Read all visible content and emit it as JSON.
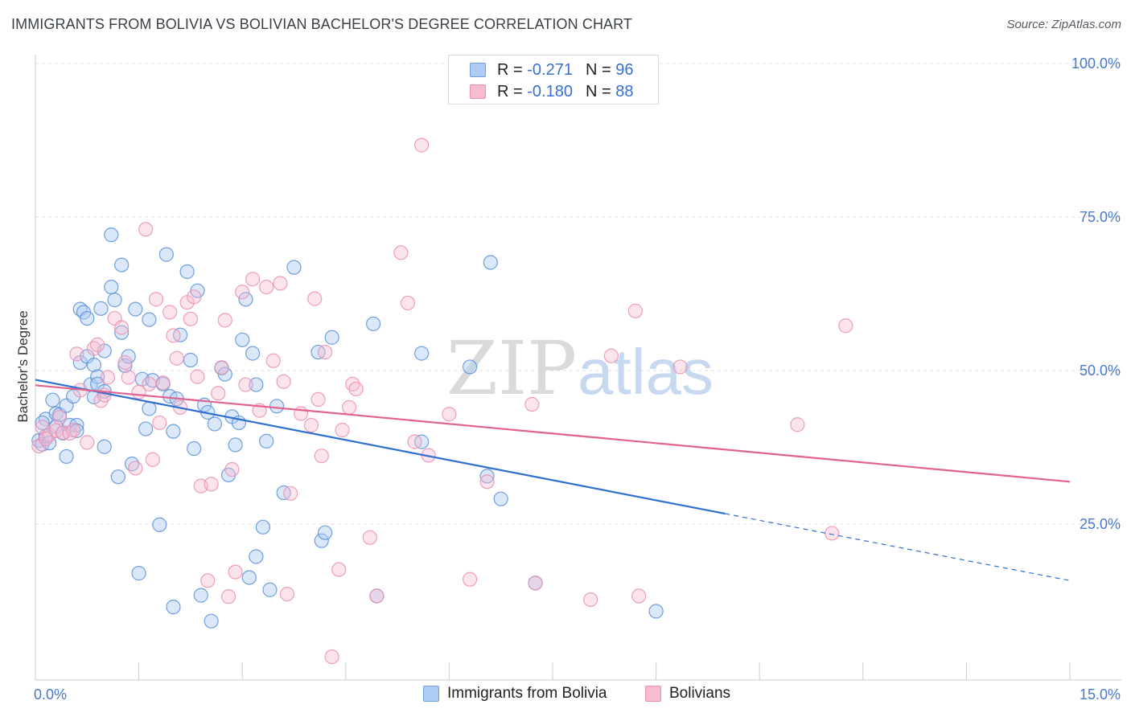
{
  "title": "IMMIGRANTS FROM BOLIVIA VS BOLIVIAN BACHELOR'S DEGREE CORRELATION CHART",
  "source": "Source: ZipAtlas.com",
  "watermark": "ZIPatlas",
  "legend": {
    "r_label": "R =",
    "n_label": "N =",
    "series": [
      {
        "name": "Immigrants from Bolivia",
        "r": "-0.271",
        "n": "96",
        "fill": "#aecbf3",
        "stroke": "#6f9fe0"
      },
      {
        "name": "Bolivians",
        "r": "-0.180",
        "n": "88",
        "fill": "#f7bcd0",
        "stroke": "#ea8fb0"
      }
    ]
  },
  "chart_data": {
    "type": "scatter",
    "xlabel": "",
    "ylabel": "Bachelor's Degree",
    "xlim": [
      0,
      15
    ],
    "ylim": [
      0,
      105
    ],
    "x_tick_labels": [
      "0.0%",
      "15.0%"
    ],
    "y_ticks": [
      25,
      50,
      75,
      100
    ],
    "y_tick_labels": [
      "25.0%",
      "50.0%",
      "75.0%",
      "100.0%"
    ],
    "series": [
      {
        "name": "Immigrants from Bolivia",
        "color": "#5b8fd8",
        "trend": {
          "x0": 0,
          "y0": 48.5,
          "x1": 10.0,
          "y1": 26.7,
          "dash_to_x": 15,
          "dash_to_y": 15.8,
          "color": "#2f6fd0"
        },
        "points": [
          [
            0.05,
            38.6
          ],
          [
            0.1,
            38.0
          ],
          [
            0.15,
            39.3
          ],
          [
            0.15,
            42.1
          ],
          [
            0.2,
            38.2
          ],
          [
            0.25,
            45.2
          ],
          [
            0.3,
            40.9
          ],
          [
            0.3,
            43.0
          ],
          [
            0.35,
            42.8
          ],
          [
            0.45,
            36.0
          ],
          [
            0.45,
            44.3
          ],
          [
            0.5,
            41.1
          ],
          [
            0.55,
            45.8
          ],
          [
            0.6,
            41.1
          ],
          [
            0.65,
            51.3
          ],
          [
            0.65,
            60.0
          ],
          [
            0.7,
            59.5
          ],
          [
            0.75,
            58.5
          ],
          [
            0.75,
            52.3
          ],
          [
            0.8,
            47.7
          ],
          [
            0.85,
            45.7
          ],
          [
            0.85,
            50.9
          ],
          [
            0.9,
            49.0
          ],
          [
            0.9,
            47.8
          ],
          [
            0.95,
            60.1
          ],
          [
            1.0,
            46.6
          ],
          [
            1.0,
            53.2
          ],
          [
            1.1,
            72.1
          ],
          [
            1.1,
            63.6
          ],
          [
            1.15,
            61.5
          ],
          [
            1.2,
            32.7
          ],
          [
            1.25,
            67.2
          ],
          [
            1.25,
            56.2
          ],
          [
            1.3,
            50.8
          ],
          [
            1.35,
            52.3
          ],
          [
            1.4,
            34.8
          ],
          [
            1.45,
            60.0
          ],
          [
            1.5,
            17.0
          ],
          [
            1.55,
            48.6
          ],
          [
            1.6,
            40.5
          ],
          [
            1.65,
            58.3
          ],
          [
            1.65,
            43.8
          ],
          [
            1.7,
            48.4
          ],
          [
            1.8,
            24.9
          ],
          [
            1.85,
            47.8
          ],
          [
            1.9,
            68.9
          ],
          [
            1.95,
            45.8
          ],
          [
            2.0,
            11.5
          ],
          [
            2.05,
            45.4
          ],
          [
            2.1,
            55.8
          ],
          [
            2.2,
            66.1
          ],
          [
            2.25,
            51.7
          ],
          [
            2.3,
            37.3
          ],
          [
            2.35,
            63.0
          ],
          [
            2.4,
            13.4
          ],
          [
            2.45,
            44.4
          ],
          [
            2.5,
            43.2
          ],
          [
            2.55,
            9.2
          ],
          [
            2.6,
            41.3
          ],
          [
            2.7,
            50.4
          ],
          [
            2.75,
            49.4
          ],
          [
            2.8,
            33.0
          ],
          [
            2.85,
            42.5
          ],
          [
            2.9,
            37.9
          ],
          [
            2.95,
            41.5
          ],
          [
            3.05,
            61.6
          ],
          [
            3.1,
            16.3
          ],
          [
            3.15,
            52.8
          ],
          [
            3.2,
            47.7
          ],
          [
            3.2,
            19.7
          ],
          [
            3.3,
            24.5
          ],
          [
            3.35,
            38.5
          ],
          [
            3.4,
            14.3
          ],
          [
            3.5,
            44.2
          ],
          [
            3.6,
            30.1
          ],
          [
            3.75,
            66.8
          ],
          [
            4.1,
            53.0
          ],
          [
            4.15,
            22.3
          ],
          [
            4.2,
            23.6
          ],
          [
            4.3,
            55.4
          ],
          [
            4.9,
            57.6
          ],
          [
            4.95,
            13.3
          ],
          [
            5.6,
            38.4
          ],
          [
            5.6,
            52.8
          ],
          [
            6.3,
            50.6
          ],
          [
            6.55,
            32.8
          ],
          [
            6.6,
            67.6
          ],
          [
            6.75,
            29.1
          ],
          [
            7.25,
            15.4
          ],
          [
            9.0,
            10.8
          ],
          [
            0.1,
            41.5
          ],
          [
            0.4,
            39.8
          ],
          [
            0.6,
            40.2
          ],
          [
            1.0,
            37.6
          ],
          [
            2.0,
            40.1
          ],
          [
            3.0,
            55.0
          ]
        ]
      },
      {
        "name": "Bolivians",
        "color": "#ef8fb0",
        "trend": {
          "x0": 0,
          "y0": 47.6,
          "x1": 15,
          "y1": 31.9,
          "color": "#e2628f"
        },
        "points": [
          [
            0.05,
            37.7
          ],
          [
            0.1,
            40.8
          ],
          [
            0.2,
            39.5
          ],
          [
            0.3,
            40.2
          ],
          [
            0.35,
            42.4
          ],
          [
            0.4,
            39.9
          ],
          [
            0.5,
            39.8
          ],
          [
            0.55,
            40.3
          ],
          [
            0.6,
            52.7
          ],
          [
            0.65,
            46.8
          ],
          [
            0.75,
            38.3
          ],
          [
            0.85,
            53.6
          ],
          [
            0.9,
            54.2
          ],
          [
            0.95,
            45.1
          ],
          [
            1.0,
            46.0
          ],
          [
            1.05,
            48.9
          ],
          [
            1.15,
            58.5
          ],
          [
            1.25,
            57.0
          ],
          [
            1.3,
            51.3
          ],
          [
            1.35,
            48.9
          ],
          [
            1.45,
            34.1
          ],
          [
            1.5,
            46.5
          ],
          [
            1.6,
            73.0
          ],
          [
            1.65,
            47.8
          ],
          [
            1.7,
            35.5
          ],
          [
            1.75,
            61.6
          ],
          [
            1.8,
            41.5
          ],
          [
            1.85,
            48.0
          ],
          [
            1.95,
            59.5
          ],
          [
            2.0,
            55.7
          ],
          [
            2.05,
            52.0
          ],
          [
            2.1,
            44.0
          ],
          [
            2.2,
            61.1
          ],
          [
            2.25,
            58.4
          ],
          [
            2.3,
            62.0
          ],
          [
            2.35,
            49.0
          ],
          [
            2.4,
            31.2
          ],
          [
            2.5,
            15.8
          ],
          [
            2.55,
            31.5
          ],
          [
            2.65,
            46.3
          ],
          [
            2.7,
            50.5
          ],
          [
            2.75,
            58.2
          ],
          [
            2.8,
            13.2
          ],
          [
            2.85,
            33.9
          ],
          [
            2.9,
            17.2
          ],
          [
            3.0,
            62.8
          ],
          [
            3.05,
            47.7
          ],
          [
            3.15,
            64.9
          ],
          [
            3.25,
            43.5
          ],
          [
            3.35,
            63.6
          ],
          [
            3.45,
            51.6
          ],
          [
            3.55,
            64.2
          ],
          [
            3.6,
            48.2
          ],
          [
            3.65,
            13.6
          ],
          [
            3.7,
            30.0
          ],
          [
            3.85,
            43.0
          ],
          [
            4.0,
            41.1
          ],
          [
            4.05,
            61.7
          ],
          [
            4.1,
            45.3
          ],
          [
            4.15,
            36.1
          ],
          [
            4.2,
            53.0
          ],
          [
            4.3,
            3.4
          ],
          [
            4.4,
            17.6
          ],
          [
            4.45,
            40.3
          ],
          [
            4.55,
            44.0
          ],
          [
            4.6,
            47.8
          ],
          [
            4.65,
            47.0
          ],
          [
            4.85,
            22.8
          ],
          [
            4.95,
            13.3
          ],
          [
            5.3,
            69.2
          ],
          [
            5.4,
            61.0
          ],
          [
            5.5,
            38.4
          ],
          [
            5.6,
            86.7
          ],
          [
            5.7,
            36.2
          ],
          [
            6.0,
            42.9
          ],
          [
            6.3,
            16.0
          ],
          [
            6.55,
            31.9
          ],
          [
            7.2,
            44.5
          ],
          [
            7.25,
            15.4
          ],
          [
            8.05,
            12.7
          ],
          [
            8.35,
            52.4
          ],
          [
            8.7,
            59.7
          ],
          [
            8.75,
            13.3
          ],
          [
            9.35,
            50.6
          ],
          [
            11.05,
            41.2
          ],
          [
            11.55,
            23.5
          ],
          [
            11.75,
            57.3
          ],
          [
            0.15,
            38.9
          ]
        ]
      }
    ]
  }
}
